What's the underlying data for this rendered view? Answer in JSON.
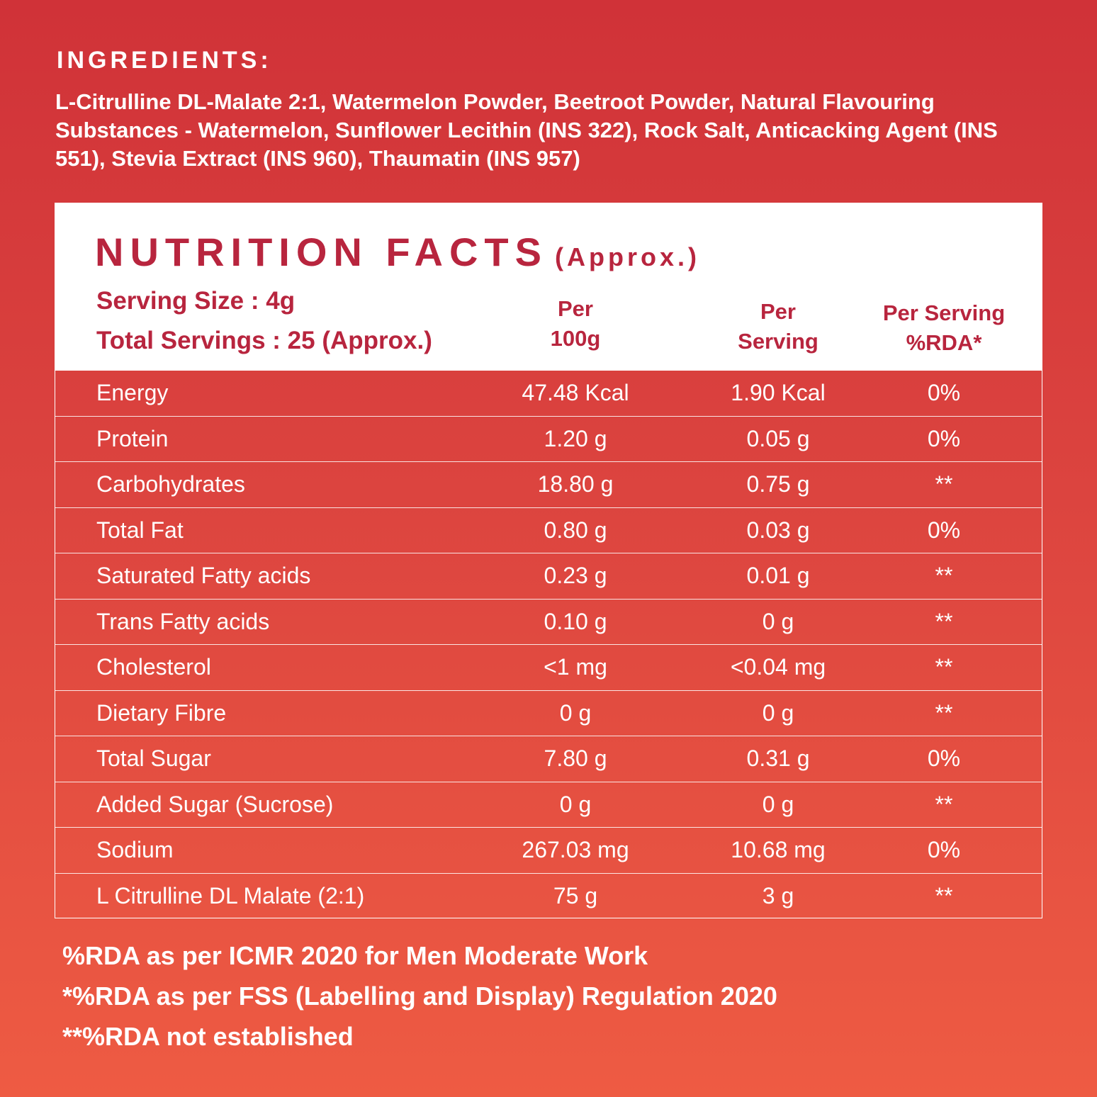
{
  "ingredients": {
    "title": "INGREDIENTS:",
    "text": "L-Citrulline DL-Malate 2:1, Watermelon Powder, Beetroot Powder, Natural Flavouring Substances - Watermelon, Sunflower Lecithin (INS 322), Rock Salt, Anticacking Agent (INS 551), Stevia Extract (INS 960), Thaumatin (INS 957)"
  },
  "nutrition": {
    "title": "NUTRITION FACTS",
    "title_suffix": "(Approx.)",
    "serving_size": "Serving Size : 4g",
    "total_servings": "Total Servings : 25 (Approx.)",
    "columns": {
      "per_100g": [
        "Per",
        "100g"
      ],
      "per_serving": [
        "Per",
        "Serving"
      ],
      "rda": [
        "Per Serving",
        "%RDA*"
      ]
    },
    "rows": [
      {
        "name": "Energy",
        "per100": "47.48 Kcal",
        "serving": "1.90 Kcal",
        "rda": "0%"
      },
      {
        "name": "Protein",
        "per100": "1.20 g",
        "serving": "0.05 g",
        "rda": "0%"
      },
      {
        "name": "Carbohydrates",
        "per100": "18.80 g",
        "serving": "0.75 g",
        "rda": "**"
      },
      {
        "name": "Total Fat",
        "per100": "0.80 g",
        "serving": "0.03 g",
        "rda": "0%"
      },
      {
        "name": "Saturated Fatty acids",
        "per100": "0.23 g",
        "serving": "0.01 g",
        "rda": "**"
      },
      {
        "name": "Trans Fatty acids",
        "per100": "0.10 g",
        "serving": "0 g",
        "rda": "**"
      },
      {
        "name": "Cholesterol",
        "per100": "<1 mg",
        "serving": "<0.04 mg",
        "rda": "**"
      },
      {
        "name": "Dietary Fibre",
        "per100": "0 g",
        "serving": "0 g",
        "rda": "**"
      },
      {
        "name": "Total Sugar",
        "per100": "7.80 g",
        "serving": "0.31 g",
        "rda": "0%"
      },
      {
        "name": "Added Sugar (Sucrose)",
        "per100": "0 g",
        "serving": "0 g",
        "rda": "**"
      },
      {
        "name": "Sodium",
        "per100": "267.03 mg",
        "serving": "10.68 mg",
        "rda": "0%"
      },
      {
        "name": "L Citrulline DL Malate (2:1)",
        "per100": "75 g",
        "serving": "3 g",
        "rda": "**"
      }
    ]
  },
  "footnotes": [
    "%RDA as per ICMR 2020 for Men Moderate Work",
    "*%RDA as per FSS (Labelling and Display) Regulation 2020",
    "**%RDA not established"
  ],
  "colors": {
    "background_top": "#d03238",
    "background_bottom": "#ee5b43",
    "heading_text": "#b8253e",
    "panel_header_bg": "#ffffff"
  }
}
